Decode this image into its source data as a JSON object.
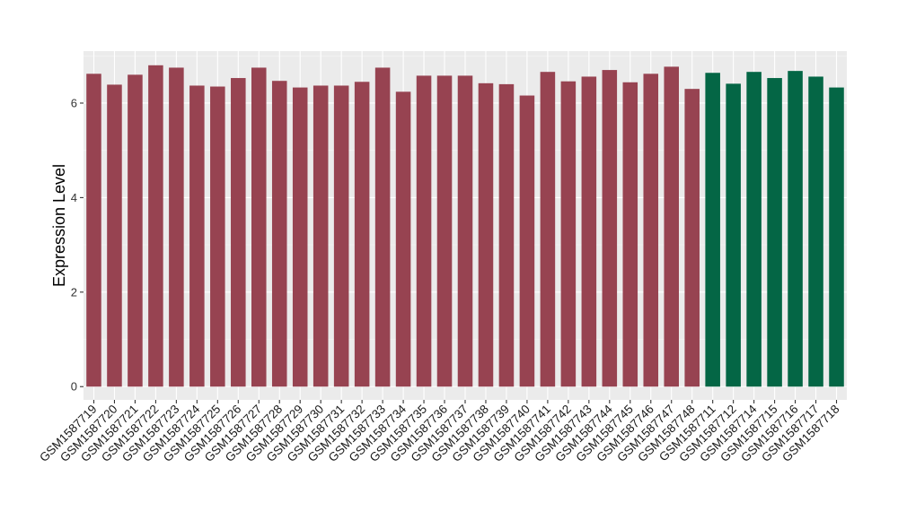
{
  "chart_data": {
    "type": "bar",
    "title": "",
    "xlabel": "",
    "ylabel": "Expression Level",
    "ylim": [
      -0.28,
      7.1
    ],
    "yticks": [
      0,
      2,
      4,
      6
    ],
    "grid": true,
    "panel_background": "#ebebeb",
    "categories": [
      "GSM1587719",
      "GSM1587720",
      "GSM1587721",
      "GSM1587722",
      "GSM1587723",
      "GSM1587724",
      "GSM1587725",
      "GSM1587726",
      "GSM1587727",
      "GSM1587728",
      "GSM1587729",
      "GSM1587730",
      "GSM1587731",
      "GSM1587732",
      "GSM1587733",
      "GSM1587734",
      "GSM1587735",
      "GSM1587736",
      "GSM1587737",
      "GSM1587738",
      "GSM1587739",
      "GSM1587740",
      "GSM1587741",
      "GSM1587742",
      "GSM1587743",
      "GSM1587744",
      "GSM1587745",
      "GSM1587746",
      "GSM1587747",
      "GSM1587748",
      "GSM1587711",
      "GSM1587712",
      "GSM1587714",
      "GSM1587715",
      "GSM1587716",
      "GSM1587717",
      "GSM1587718"
    ],
    "values": [
      6.62,
      6.39,
      6.6,
      6.8,
      6.75,
      6.37,
      6.35,
      6.53,
      6.75,
      6.47,
      6.33,
      6.37,
      6.37,
      6.45,
      6.75,
      6.24,
      6.58,
      6.58,
      6.58,
      6.42,
      6.4,
      6.16,
      6.66,
      6.46,
      6.56,
      6.7,
      6.44,
      6.62,
      6.77,
      6.3,
      6.64,
      6.41,
      6.66,
      6.53,
      6.68,
      6.56,
      6.33
    ],
    "bar_colors": [
      "#974351",
      "#974351",
      "#974351",
      "#974351",
      "#974351",
      "#974351",
      "#974351",
      "#974351",
      "#974351",
      "#974351",
      "#974351",
      "#974351",
      "#974351",
      "#974351",
      "#974351",
      "#974351",
      "#974351",
      "#974351",
      "#974351",
      "#974351",
      "#974351",
      "#974351",
      "#974351",
      "#974351",
      "#974351",
      "#974351",
      "#974351",
      "#974351",
      "#974351",
      "#974351",
      "#046645",
      "#046645",
      "#046645",
      "#046645",
      "#046645",
      "#046645",
      "#046645"
    ]
  }
}
